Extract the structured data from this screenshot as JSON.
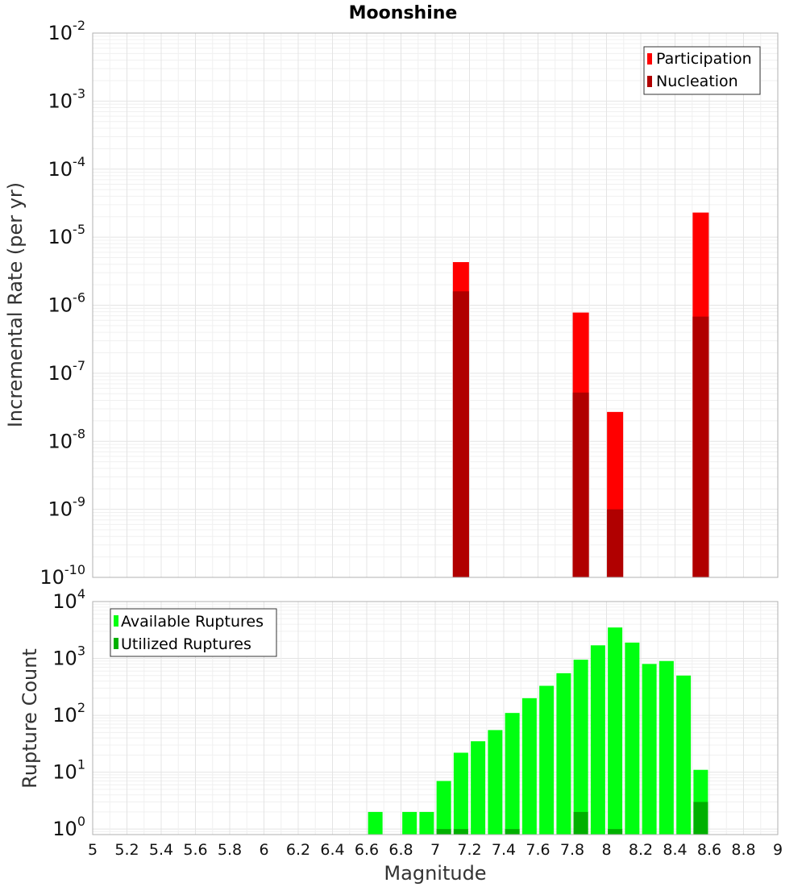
{
  "title": "Moonshine",
  "chart_data": [
    {
      "type": "bar",
      "ylabel": "Incremental Rate (per yr)",
      "yscale": "log",
      "ylim": [
        1e-10,
        0.01
      ],
      "xlim": [
        5,
        9
      ],
      "bin_width": 0.1,
      "legend": {
        "placement": "top-right"
      },
      "series": [
        {
          "name": "Participation",
          "color": "#ff0000",
          "x": [
            7.15,
            7.85,
            8.05,
            8.55
          ],
          "values": [
            4.3e-06,
            7.8e-07,
            2.7e-08,
            2.3e-05
          ]
        },
        {
          "name": "Nucleation",
          "color": "#b00000",
          "x": [
            7.15,
            7.85,
            8.05,
            8.55
          ],
          "values": [
            1.6e-06,
            5.2e-08,
            1e-09,
            6.8e-07
          ]
        }
      ]
    },
    {
      "type": "bar",
      "ylabel": "Rupture Count",
      "xlabel": "Magnitude",
      "yscale": "log",
      "ylim": [
        0.8,
        10000
      ],
      "xlim": [
        5,
        9
      ],
      "bin_width": 0.1,
      "legend": {
        "placement": "top-left"
      },
      "series": [
        {
          "name": "Available Ruptures",
          "color": "#00ff10",
          "x": [
            6.65,
            6.85,
            6.95,
            7.05,
            7.15,
            7.25,
            7.35,
            7.45,
            7.55,
            7.65,
            7.75,
            7.85,
            7.95,
            8.05,
            8.15,
            8.25,
            8.35,
            8.45,
            8.55
          ],
          "values": [
            2,
            2,
            2,
            7,
            22,
            35,
            55,
            110,
            200,
            330,
            550,
            950,
            1700,
            3500,
            1900,
            800,
            900,
            500,
            11
          ]
        },
        {
          "name": "Utilized Ruptures",
          "color": "#00b000",
          "x": [
            7.05,
            7.15,
            7.45,
            7.85,
            8.05,
            8.55
          ],
          "values": [
            1,
            1,
            1,
            2,
            1,
            3
          ]
        }
      ]
    }
  ],
  "x_ticks": [
    "5",
    "5.2",
    "5.4",
    "5.6",
    "5.8",
    "6",
    "6.2",
    "6.4",
    "6.6",
    "6.8",
    "7",
    "7.2",
    "7.4",
    "7.6",
    "7.8",
    "8",
    "8.2",
    "8.4",
    "8.6",
    "8.8",
    "9"
  ]
}
